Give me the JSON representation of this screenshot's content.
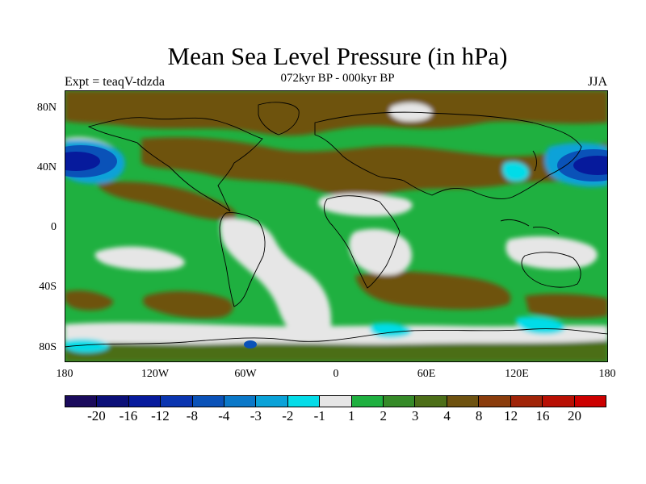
{
  "title": "Mean Sea Level Pressure (in hPa)",
  "subtitle": "072kyr BP - 000kyr BP",
  "experiment": "Expt = teaqV-tdzda",
  "season": "JJA",
  "map": {
    "lat_ticks": [
      "80N",
      "40N",
      "0",
      "40S",
      "80S"
    ],
    "lon_ticks": [
      "180",
      "120W",
      "60W",
      "0",
      "60E",
      "120E",
      "180"
    ]
  },
  "colorbar": {
    "colors": [
      "#1a0a5c",
      "#0b0f78",
      "#061a9c",
      "#0a35b0",
      "#0a52b8",
      "#0a78c8",
      "#0aa2d8",
      "#05dce8",
      "#e6e6e6",
      "#1fb040",
      "#358a28",
      "#4c6e18",
      "#6e5210",
      "#8a3c0c",
      "#a02408",
      "#b81004",
      "#cc0000"
    ],
    "labels": [
      "-20",
      "-16",
      "-12",
      "-8",
      "-4",
      "-3",
      "-2",
      "-1",
      "1",
      "2",
      "3",
      "4",
      "8",
      "12",
      "16",
      "20"
    ]
  },
  "palette": {
    "brown": "#6e5210",
    "dark_brown": "#8a3c0c",
    "olive": "#4c6e18",
    "green": "#1fb040",
    "mid_green": "#358a28",
    "gray": "#e6e6e6",
    "white": "#ffffff",
    "cyan": "#05dce8",
    "light_blue": "#0aa2d8",
    "blue": "#0a52b8",
    "dark_blue": "#061a9c"
  }
}
